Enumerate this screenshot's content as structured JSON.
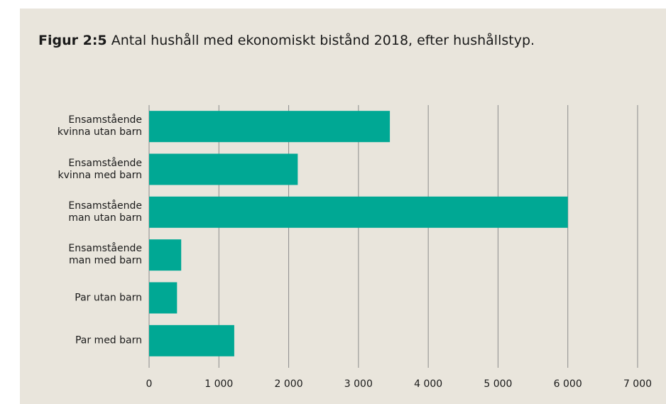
{
  "chart_data": {
    "type": "bar",
    "orientation": "horizontal",
    "title_label": "Figur 2:5",
    "title": "Antal hushåll med ekonomiskt bistånd 2018, efter hushållstyp.",
    "categories": [
      "Ensamstående\nkvinna utan barn",
      "Ensamstående\nkvinna med barn",
      "Ensamstående\nman utan barn",
      "Ensamstående\nman med barn",
      "Par utan barn",
      "Par med barn"
    ],
    "values": [
      3450,
      2130,
      6000,
      460,
      400,
      1220
    ],
    "color": "#00a894",
    "xlim": [
      0,
      7000
    ],
    "xticks": [
      0,
      {
        "value": 1000,
        "label": "1 000"
      },
      {
        "value": 2000,
        "label": "2 000"
      },
      {
        "value": 3000,
        "label": "3 000"
      },
      {
        "value": 4000,
        "label": "4 000"
      },
      {
        "value": 5000,
        "label": "5 000"
      },
      {
        "value": 6000,
        "label": "6 000"
      },
      {
        "value": 7000,
        "label": "7 000"
      }
    ],
    "grid": true
  }
}
